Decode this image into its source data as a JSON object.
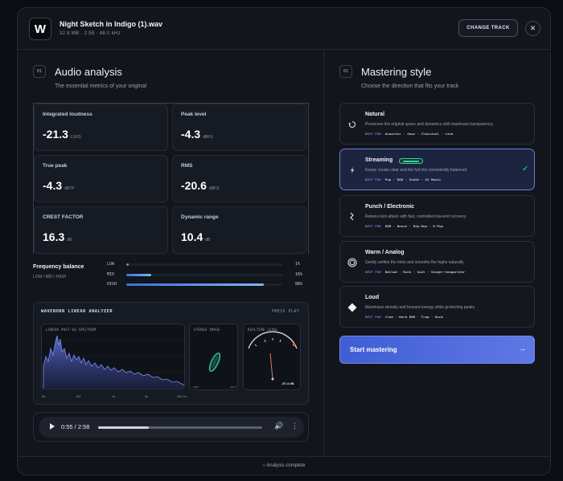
{
  "header": {
    "logo": "W",
    "file_name": "Night Sketch in Indigo (1).wav",
    "file_meta": "32.8 MB · 2:58 · 48.0 kHz",
    "change_label": "CHANGE TRACK",
    "close_symbol": "✕"
  },
  "analysis": {
    "num": "01",
    "title": "Audio analysis",
    "subtitle": "The essential metrics of your original",
    "metrics": [
      {
        "label": "Integrated loudness",
        "value": "-21.3",
        "unit": "LUFS"
      },
      {
        "label": "Peak level",
        "value": "-4.3",
        "unit": "dBFS"
      },
      {
        "label": "True peak",
        "value": "-4.3",
        "unit": "dBTP"
      },
      {
        "label": "RMS",
        "value": "-20.6",
        "unit": "dBFS"
      },
      {
        "label": "CREST FACTOR",
        "value": "16.3",
        "unit": "dB"
      },
      {
        "label": "Dynamic range",
        "value": "10.4",
        "unit": "dB"
      }
    ],
    "freq_title": "Frequency balance",
    "freq_sub": "LOW / MID / HIGH",
    "bands": [
      {
        "label": "LOW",
        "value": 1,
        "pct": "1%"
      },
      {
        "label": "MID",
        "value": 16,
        "pct": "16%"
      },
      {
        "label": "HIGH",
        "value": 88,
        "pct": "88%"
      }
    ]
  },
  "analyzer": {
    "title": "WAVEBORN LINEAR ANALYZER",
    "press": "PRESS PLAY",
    "spectrum_title": "LINEAR POST-EQ SPECTRUM",
    "stereo_title": "STEREO IMAGE",
    "stereo_left": "LEFT",
    "stereo_right": "LEFT",
    "level_title": "REALTIME LEVEL",
    "level_readout": "-57.4 dB",
    "freq_ticks": [
      "50",
      "100",
      "1k",
      "5k",
      "20k Hz"
    ]
  },
  "player": {
    "time": "0:55 / 2:58",
    "progress": 0.31,
    "volume_symbol": "🔊",
    "more_symbol": "⋮"
  },
  "mastering": {
    "num": "02",
    "title": "Mastering style",
    "subtitle": "Choose the direction that fits your track",
    "best_label": "BEST FOR",
    "styles": [
      {
        "name": "Natural",
        "desc": "Preserves the original space and dynamics with maximum transparency",
        "best": "Acoustic · Jazz · Classical · Live",
        "icon": "natural-icon"
      },
      {
        "name": "Streaming",
        "desc": "Keeps vocals clear and the full mix consistently balanced",
        "best": "Pop · R&B · Indie · AI Music",
        "icon": "bolt-icon"
      },
      {
        "name": "Punch / Electronic",
        "desc": "Retains kick attack with fast, controlled low-end recovery",
        "best": "EDM · House · Hip-Hop · K-Pop",
        "icon": "wave-icon"
      },
      {
        "name": "Warm / Analog",
        "desc": "Gently unifies the mids and smooths the highs naturally",
        "best": "Ballad · Rock · Soul · Singer-Songwriter",
        "icon": "circle-icon"
      },
      {
        "name": "Loud",
        "desc": "Maximizes density and forward energy while protecting peaks",
        "best": "Club · Hard EDM · Trap · Rock",
        "icon": "diamond-icon"
      }
    ],
    "start_label": "Start mastering",
    "start_arrow": "→"
  },
  "footer": {
    "status": "○ Analysis complete"
  }
}
